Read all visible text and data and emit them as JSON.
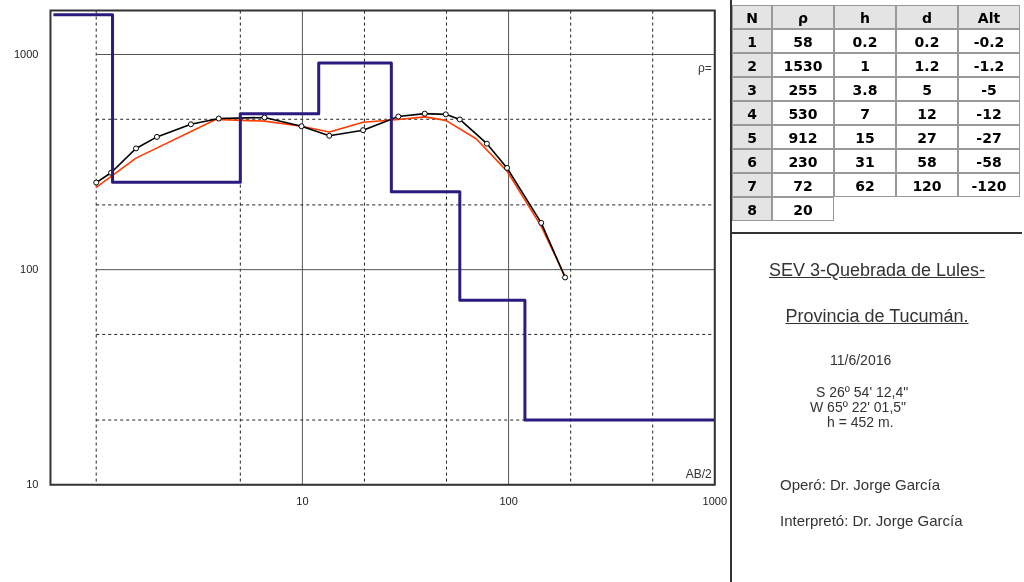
{
  "chart_data": [
    {
      "type": "line",
      "xlabel": "AB/2",
      "log": "xy",
      "xlim": [
        0.62,
        1000
      ],
      "ylim": [
        10,
        1600
      ],
      "xticks": [
        {
          "value": 1,
          "label": null
        },
        {
          "value": 5,
          "label": null
        },
        10,
        {
          "value": 20,
          "label": null
        },
        {
          "value": 50,
          "label": null
        },
        100,
        {
          "value": 200,
          "label": null
        },
        {
          "value": 500,
          "label": null
        },
        1000
      ],
      "yticks": [
        10,
        {
          "value": 20,
          "label": null
        },
        {
          "value": 50,
          "label": null
        },
        100,
        {
          "value": 200,
          "label": null
        },
        {
          "value": 500,
          "label": null
        },
        1000
      ],
      "grid": true,
      "annotations": [
        "ρ="
      ],
      "series": [
        {
          "type": "step",
          "color": "#2b1b7e",
          "x": [
            0.62,
            1.2,
            5,
            12,
            27,
            58,
            120,
            1000
          ],
          "values": [
            1530,
            255,
            530,
            912,
            230,
            72,
            20,
            20
          ]
        },
        {
          "type": "line",
          "color": "#000000",
          "marker": "circle",
          "x": [
            1,
            1.18,
            1.56,
            1.97,
            2.88,
            3.93,
            6.55,
            9.9,
            13.5,
            19.7,
            29.2,
            39.2,
            49.6,
            58,
            78.5,
            98.3,
            144,
            188
          ],
          "values": [
            254,
            282,
            366,
            414,
            474,
            504,
            510,
            464,
            419,
            445,
            515,
            531,
            527,
            499,
            385,
            297,
            165,
            92
          ]
        },
        {
          "type": "line",
          "color": "#ff3c00",
          "x": [
            1,
            1.56,
            3.8,
            6.55,
            9.9,
            13.5,
            19.7,
            29.2,
            39.2,
            49.6,
            69.6,
            98,
            144,
            191
          ],
          "values": [
            241,
            330,
            499,
            490,
            464,
            436,
            484,
            499,
            513,
            494,
            406,
            288,
            159,
            90
          ]
        }
      ]
    },
    {
      "type": "heatmap",
      "ylabel": "N",
      "categories": [
        "ρ",
        "h",
        "d",
        "Alt"
      ],
      "y_categories": [
        "1",
        "2",
        "3",
        "4",
        "5",
        "6",
        "7",
        "8"
      ],
      "data_labels": true,
      "cells": [
        [
          58,
          0.2,
          0.2,
          -0.2
        ],
        [
          1530,
          1,
          1.2,
          -1.2
        ],
        [
          255,
          3.8,
          5,
          -5
        ],
        [
          530,
          7,
          12,
          -12
        ],
        [
          912,
          15,
          27,
          -27
        ],
        [
          230,
          31,
          58,
          -58
        ],
        [
          72,
          62,
          120,
          -120
        ],
        [
          20,
          null,
          null,
          null
        ]
      ]
    },
    {
      "type": "other",
      "title": "SEV 3-Quebrada de Lules-",
      "subtitle": "Provincia de Tucumán.",
      "annotations": [
        "11/6/2016",
        "S 26º 54' 12,4\"",
        "W 65º 22' 01,5\"",
        "h = 452 m.",
        "Operó:  Dr. Jorge García",
        "Interpretó: Dr. Jorge García"
      ]
    }
  ]
}
